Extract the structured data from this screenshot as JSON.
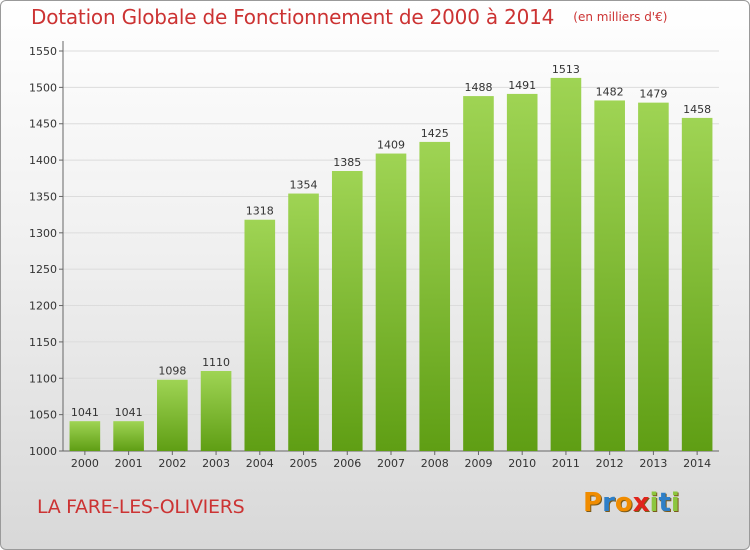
{
  "header": {
    "title": "Dotation Globale de Fonctionnement de 2000 à 2014",
    "unit": "(en milliers d'€)"
  },
  "footer": {
    "commune": "LA FARE-LES-OLIVIERS",
    "logo_text": "Proxiti"
  },
  "colors": {
    "accent": "#cc3333",
    "bar_top": "#9fd454",
    "bar_bottom": "#5f9e14",
    "logo": [
      "#f08c00",
      "#2e7fc8",
      "#f08c00",
      "#e0241c",
      "#8cc63f",
      "#2e7fc8",
      "#8cc63f"
    ]
  },
  "chart_data": {
    "type": "bar",
    "categories": [
      "2000",
      "2001",
      "2002",
      "2003",
      "2004",
      "2005",
      "2006",
      "2007",
      "2008",
      "2009",
      "2010",
      "2011",
      "2012",
      "2013",
      "2014"
    ],
    "values": [
      1041,
      1041,
      1098,
      1110,
      1318,
      1354,
      1385,
      1409,
      1425,
      1488,
      1491,
      1513,
      1482,
      1479,
      1458
    ],
    "title": "Dotation Globale de Fonctionnement de 2000 à 2014",
    "ylim": [
      1000,
      1550
    ],
    "yticks": [
      1000,
      1050,
      1100,
      1150,
      1200,
      1250,
      1300,
      1350,
      1400,
      1450,
      1500,
      1550
    ],
    "grid": true
  }
}
